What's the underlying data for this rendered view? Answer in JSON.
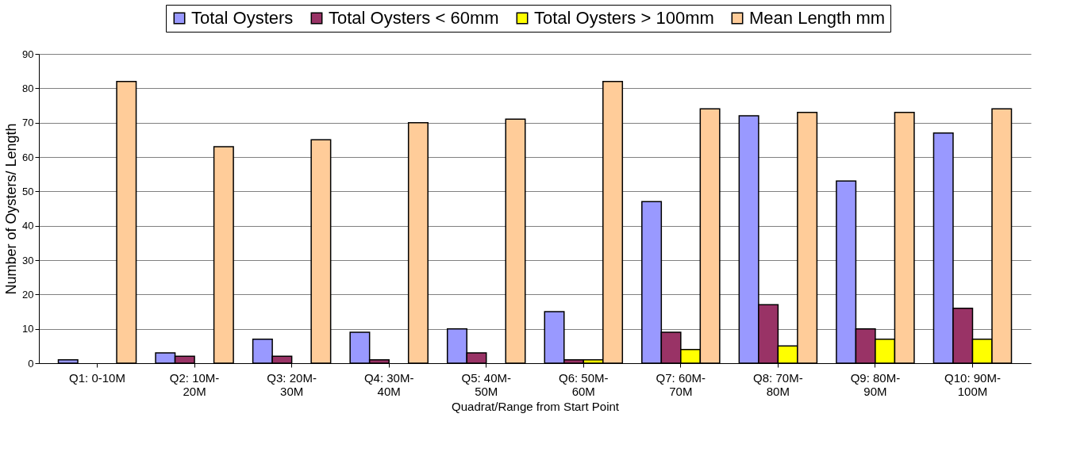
{
  "chart_data": {
    "type": "bar",
    "xlabel": "Quadrat/Range from Start Point",
    "ylabel": "Number of Oysters/ Length",
    "categories": [
      "Q1: 0-10M",
      "Q2: 10M-20M",
      "Q3: 20M-30M",
      "Q4: 30M-40M",
      "Q5: 40M-50M",
      "Q6: 50M-60M",
      "Q7: 60M-70M",
      "Q8: 70M-80M",
      "Q9: 80M-90M",
      "Q10: 90M-100M"
    ],
    "series": [
      {
        "name": "Total Oysters",
        "color": "#9999ff",
        "values": [
          1,
          3,
          7,
          9,
          10,
          15,
          47,
          72,
          53,
          67
        ]
      },
      {
        "name": "Total Oysters < 60mm",
        "color": "#993366",
        "values": [
          0,
          2,
          2,
          1,
          3,
          1,
          9,
          17,
          10,
          16
        ]
      },
      {
        "name": "Total Oysters > 100mm",
        "color": "#ffff00",
        "values": [
          0,
          0,
          0,
          0,
          0,
          1,
          4,
          5,
          7,
          7
        ]
      },
      {
        "name": "Mean Length mm",
        "color": "#ffcc99",
        "values": [
          82,
          63,
          65,
          70,
          71,
          82,
          74,
          73,
          73,
          74
        ]
      }
    ],
    "ylim": [
      0,
      90
    ],
    "yticks": [
      0,
      10,
      20,
      30,
      40,
      50,
      60,
      70,
      80,
      90
    ],
    "grid": "y",
    "legend": "top"
  }
}
